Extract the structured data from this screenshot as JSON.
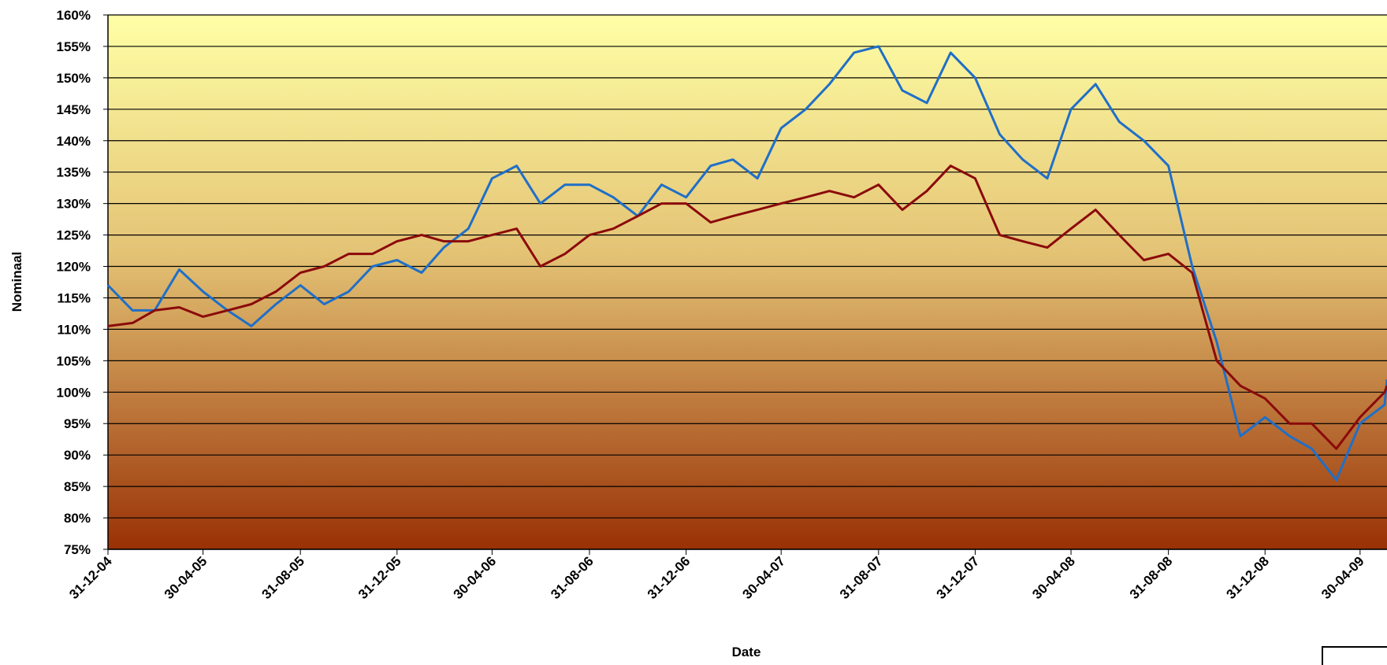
{
  "chart_data": {
    "type": "line",
    "x_label": "Date",
    "y_label": "Nominaal",
    "x": [
      "2004-12-31",
      "2005-01-31",
      "2005-02-28",
      "2005-03-31",
      "2005-04-30",
      "2005-05-31",
      "2005-06-30",
      "2005-07-31",
      "2005-08-31",
      "2005-09-30",
      "2005-10-31",
      "2005-11-30",
      "2005-12-31",
      "2006-01-31",
      "2006-02-28",
      "2006-03-31",
      "2006-04-30",
      "2006-05-31",
      "2006-06-30",
      "2006-07-31",
      "2006-08-31",
      "2006-09-30",
      "2006-10-31",
      "2006-11-30",
      "2006-12-31",
      "2007-01-31",
      "2007-02-28",
      "2007-03-31",
      "2007-04-30",
      "2007-05-31",
      "2007-06-30",
      "2007-07-31",
      "2007-08-31",
      "2007-09-30",
      "2007-10-31",
      "2007-11-30",
      "2007-12-31",
      "2008-01-31",
      "2008-02-29",
      "2008-03-31",
      "2008-04-30",
      "2008-05-31",
      "2008-06-30",
      "2008-07-31",
      "2008-08-31",
      "2008-09-30",
      "2008-10-31",
      "2008-11-30",
      "2008-12-31",
      "2009-01-31",
      "2009-02-28",
      "2009-03-31",
      "2009-04-30",
      "2009-05-31",
      "2009-06-03"
    ],
    "series": [
      {
        "color": "#1f6fc8",
        "values": [
          117,
          113,
          113,
          119.5,
          116,
          113,
          110.5,
          114,
          117,
          114,
          116,
          120,
          121,
          119,
          123,
          126,
          134,
          136,
          130,
          133,
          133,
          131,
          128,
          133,
          131,
          136,
          137,
          134,
          142,
          145,
          149,
          154,
          155,
          148,
          146,
          154,
          150,
          141,
          137,
          134,
          145,
          149,
          143,
          140,
          136,
          120,
          108,
          93,
          96,
          93,
          91,
          86,
          95,
          98,
          102
        ]
      },
      {
        "color": "#8b0a0a",
        "values": [
          110.5,
          111,
          113,
          113.5,
          112,
          113,
          114,
          116,
          119,
          120,
          122,
          122,
          124,
          125,
          124,
          124,
          125,
          126,
          120,
          122,
          125,
          126,
          128,
          130,
          130,
          127,
          128,
          129,
          130,
          131,
          132,
          131,
          133,
          129,
          132,
          136,
          134,
          125,
          124,
          123,
          126,
          129,
          125,
          121,
          122,
          119,
          105,
          101,
          99,
          95,
          95,
          91,
          96,
          100,
          101
        ]
      }
    ],
    "xlim": [
      "2004-12-31",
      "2009-06-03"
    ],
    "xticks": [
      {
        "value": "2004-12-31",
        "label": "31-12-04"
      },
      {
        "value": "2005-04-30",
        "label": "30-04-05"
      },
      {
        "value": "2005-08-31",
        "label": "31-08-05"
      },
      {
        "value": "2005-12-31",
        "label": "31-12-05"
      },
      {
        "value": "2006-04-30",
        "label": "30-04-06"
      },
      {
        "value": "2006-08-31",
        "label": "31-08-06"
      },
      {
        "value": "2006-12-31",
        "label": "31-12-06"
      },
      {
        "value": "2007-04-30",
        "label": "30-04-07"
      },
      {
        "value": "2007-08-31",
        "label": "31-08-07"
      },
      {
        "value": "2007-12-31",
        "label": "31-12-07"
      },
      {
        "value": "2008-04-30",
        "label": "30-04-08"
      },
      {
        "value": "2008-08-31",
        "label": "31-08-08"
      },
      {
        "value": "2008-12-31",
        "label": "31-12-08"
      },
      {
        "value": "2009-04-30",
        "label": "30-04-09"
      }
    ],
    "ylim": [
      75,
      160
    ],
    "yticks": [
      {
        "value": 75,
        "label": "75%"
      },
      {
        "value": 80,
        "label": "80%"
      },
      {
        "value": 85,
        "label": "85%"
      },
      {
        "value": 90,
        "label": "90%"
      },
      {
        "value": 95,
        "label": "95%"
      },
      {
        "value": 100,
        "label": "100%"
      },
      {
        "value": 105,
        "label": "105%"
      },
      {
        "value": 110,
        "label": "110%"
      },
      {
        "value": 115,
        "label": "115%"
      },
      {
        "value": 120,
        "label": "120%"
      },
      {
        "value": 125,
        "label": "125%"
      },
      {
        "value": 130,
        "label": "130%"
      },
      {
        "value": 135,
        "label": "135%"
      },
      {
        "value": 140,
        "label": "140%"
      },
      {
        "value": 145,
        "label": "145%"
      },
      {
        "value": 150,
        "label": "150%"
      },
      {
        "value": 155,
        "label": "155%"
      },
      {
        "value": 160,
        "label": "160%"
      }
    ],
    "grid": true
  }
}
